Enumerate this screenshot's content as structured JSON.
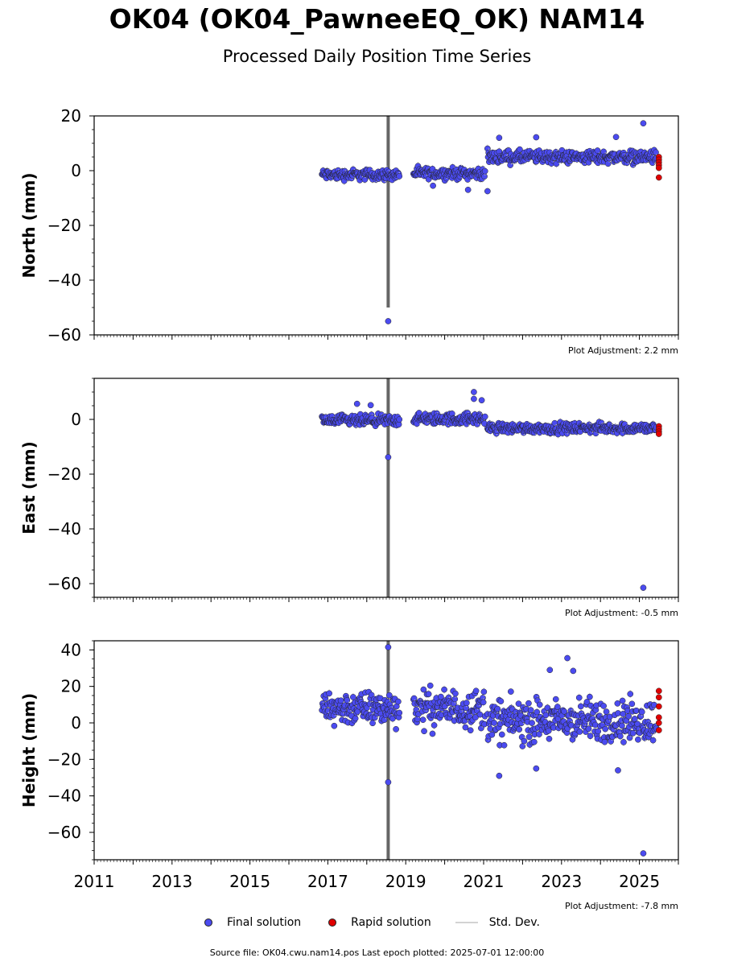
{
  "header": {
    "title": "OK04 (OK04_PawneeEQ_OK) NAM14",
    "subtitle": "Processed Daily Position Time Series"
  },
  "chart_data": [
    {
      "type": "scatter",
      "ylabel": "North (mm)",
      "xlim": [
        2011,
        2026
      ],
      "ylim": [
        -60,
        20
      ],
      "yticks": [
        -60,
        -40,
        -20,
        0,
        20
      ],
      "adjustment": "Plot Adjustment: 2.2 mm",
      "series": [
        {
          "name": "Final solution",
          "color": "#4b4bf0",
          "segments": [
            {
              "x0": 2016.85,
              "x1": 2018.85,
              "y": -1.5,
              "spread": 1.5
            },
            {
              "x0": 2019.2,
              "x1": 2021.05,
              "y": -1.0,
              "spread": 1.5
            },
            {
              "x0": 2021.1,
              "x1": 2025.45,
              "y": 5.0,
              "spread": 1.8
            }
          ],
          "outliers": [
            [
              2018.55,
              -55
            ],
            [
              2025.1,
              17.3
            ],
            [
              2021.1,
              -7.5
            ],
            [
              2020.6,
              -7
            ],
            [
              2022.35,
              12.2
            ],
            [
              2021.4,
              12
            ],
            [
              2024.4,
              12.3
            ],
            [
              2019.7,
              -5.5
            ]
          ]
        },
        {
          "name": "Rapid solution",
          "color": "#e00000",
          "points": [
            [
              2025.5,
              5
            ],
            [
              2025.5,
              4
            ],
            [
              2025.5,
              3
            ],
            [
              2025.5,
              2
            ],
            [
              2025.5,
              1
            ],
            [
              2025.5,
              -2.5
            ]
          ]
        }
      ],
      "stddev_bursts": [
        {
          "x": 2018.55,
          "ymin": -50,
          "ymax": 20
        }
      ]
    },
    {
      "type": "scatter",
      "ylabel": "East (mm)",
      "xlim": [
        2011,
        2026
      ],
      "ylim": [
        -65,
        15
      ],
      "yticks": [
        -60,
        -40,
        -20,
        0
      ],
      "adjustment": "Plot Adjustment: -0.5 mm",
      "series": [
        {
          "name": "Final solution",
          "color": "#4b4bf0",
          "segments": [
            {
              "x0": 2016.85,
              "x1": 2018.85,
              "y": -0.5,
              "spread": 1.6
            },
            {
              "x0": 2019.2,
              "x1": 2021.05,
              "y": 0.2,
              "spread": 1.6
            },
            {
              "x0": 2021.1,
              "x1": 2025.45,
              "y": -3.2,
              "spread": 1.4
            }
          ],
          "outliers": [
            [
              2018.55,
              -13.8
            ],
            [
              2025.1,
              -61.5
            ],
            [
              2020.75,
              10
            ],
            [
              2020.75,
              7.5
            ],
            [
              2020.95,
              7
            ],
            [
              2017.75,
              5.7
            ],
            [
              2018.1,
              5.2
            ]
          ]
        },
        {
          "name": "Rapid solution",
          "color": "#e00000",
          "points": [
            [
              2025.5,
              -2.5
            ],
            [
              2025.5,
              -3.5
            ],
            [
              2025.5,
              -4.5
            ],
            [
              2025.5,
              -5.3
            ]
          ]
        }
      ],
      "stddev_bursts": [
        {
          "x": 2018.55,
          "ymin": -65,
          "ymax": 15
        }
      ]
    },
    {
      "type": "scatter",
      "ylabel": "Height (mm)",
      "xlim": [
        2011,
        2026
      ],
      "ylim": [
        -75,
        45
      ],
      "yticks": [
        -60,
        -40,
        -20,
        0,
        20,
        40
      ],
      "xticks": [
        2011,
        2013,
        2015,
        2017,
        2019,
        2021,
        2023,
        2025
      ],
      "adjustment": "Plot Adjustment: -7.8 mm",
      "series": [
        {
          "name": "Final solution",
          "color": "#4b4bf0",
          "segments": [
            {
              "x0": 2016.85,
              "x1": 2018.85,
              "y": 8,
              "spread": 7
            },
            {
              "x0": 2019.2,
              "x1": 2021.05,
              "y": 8,
              "spread": 8
            },
            {
              "x0": 2021.1,
              "x1": 2025.45,
              "y": 1,
              "spread": 9
            }
          ],
          "outliers": [
            [
              2018.55,
              41.5
            ],
            [
              2018.55,
              -32.5
            ],
            [
              2025.1,
              -71.5
            ],
            [
              2023.15,
              35.5
            ],
            [
              2024.45,
              -26
            ],
            [
              2021.4,
              -29
            ],
            [
              2022.35,
              -25
            ],
            [
              2022.7,
              29
            ],
            [
              2023.3,
              28.5
            ]
          ]
        },
        {
          "name": "Rapid solution",
          "color": "#e00000",
          "points": [
            [
              2025.5,
              17.5
            ],
            [
              2025.5,
              14
            ],
            [
              2025.5,
              9
            ],
            [
              2025.5,
              3
            ],
            [
              2025.5,
              0
            ],
            [
              2025.5,
              -4
            ]
          ]
        }
      ],
      "stddev_bursts": [
        {
          "x": 2018.55,
          "ymin": -75,
          "ymax": 45
        }
      ]
    }
  ],
  "legend": {
    "final": "Final solution",
    "rapid": "Rapid solution",
    "stddev": "Std. Dev.",
    "final_color": "#4b4bf0",
    "rapid_color": "#e00000",
    "stddev_color": "#d3d3d3"
  },
  "footer": "Source file: OK04.cwu.nam14.pos  Last epoch plotted: 2025-07-01 12:00:00"
}
